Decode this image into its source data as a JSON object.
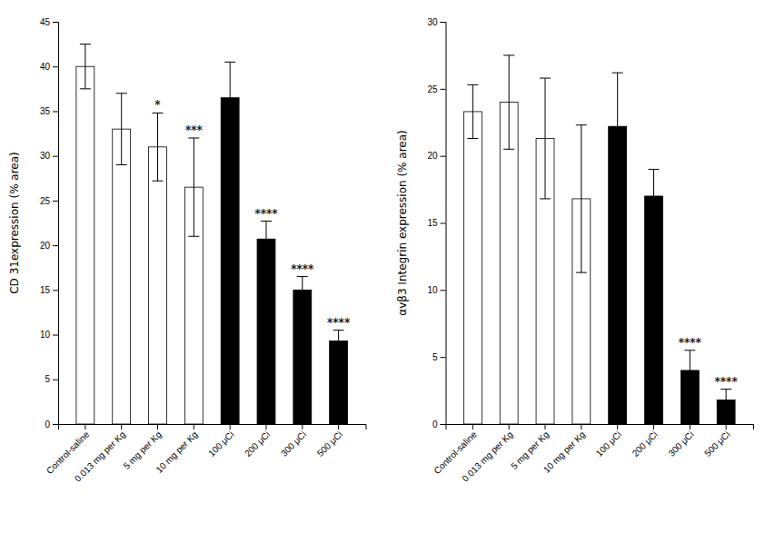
{
  "chart_data": [
    {
      "type": "bar",
      "ylabel": "CD 31expression (% area)",
      "categories": [
        "Control-saline",
        "0.013 mg per Kg",
        "5 mg per Kg",
        "10 mg per Kg",
        "100 μCi",
        "200 μCi",
        "300 μCi",
        "500 μCi"
      ],
      "values": [
        40.0,
        33.0,
        31.0,
        26.5,
        36.5,
        20.7,
        15.0,
        9.3
      ],
      "errors": [
        2.5,
        4.0,
        3.8,
        5.5,
        4.0,
        2.0,
        1.5,
        1.2
      ],
      "colors": [
        "white",
        "white",
        "white",
        "white",
        "black",
        "black",
        "black",
        "black"
      ],
      "significance": [
        null,
        null,
        "*",
        "***",
        null,
        "****",
        "****",
        "****"
      ],
      "ylim": [
        0,
        45
      ],
      "yticks": [
        0,
        5,
        10,
        15,
        20,
        25,
        30,
        35,
        40,
        45
      ],
      "grid": false
    },
    {
      "type": "bar",
      "ylabel": "αvβ3 Integrin expression (% area)",
      "categories": [
        "Control-saline",
        "0.013 mg per Kg",
        "5 mg per Kg",
        "10 mg per Kg",
        "100 μCi",
        "200 μCi",
        "300 μCi",
        "500 μCi"
      ],
      "values": [
        23.3,
        24.0,
        21.3,
        16.8,
        22.2,
        17.0,
        4.0,
        1.8
      ],
      "errors": [
        2.0,
        3.5,
        4.5,
        5.5,
        4.0,
        2.0,
        1.5,
        0.8
      ],
      "colors": [
        "white",
        "white",
        "white",
        "white",
        "black",
        "black",
        "black",
        "black"
      ],
      "significance": [
        null,
        null,
        null,
        null,
        null,
        null,
        "****",
        "****"
      ],
      "ylim": [
        0,
        30
      ],
      "yticks": [
        0,
        5,
        10,
        15,
        20,
        25,
        30
      ],
      "grid": false
    }
  ]
}
